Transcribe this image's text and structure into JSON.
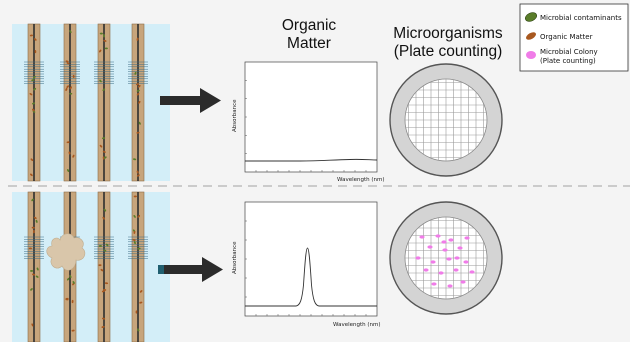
{
  "headers": {
    "organic_line1": "Organic",
    "organic_line2": "Matter",
    "micro_line1": "Microorganisms",
    "micro_line2": "(Plate counting)"
  },
  "legend": {
    "items": [
      {
        "label": "Microbial contaminants",
        "color": "#5a7d2a"
      },
      {
        "label": "Organic Matter",
        "color": "#a8581f"
      },
      {
        "label": "Microbial Colony",
        "label2": "(Plate counting)",
        "color": "#f07ce8"
      }
    ]
  },
  "plots": {
    "top": {
      "ylabel": "Absorbance",
      "xlabel": "Wavelength (nm)"
    },
    "bottom": {
      "ylabel": "Absorbance",
      "xlabel": "Wavelength (nm)"
    }
  },
  "colors": {
    "water": "#d3eef8",
    "column": "#c7a57c",
    "arrow": "#2b2b2b",
    "plate_fill": "#d4d4d4",
    "petri_grid": "#9a9a9a"
  }
}
